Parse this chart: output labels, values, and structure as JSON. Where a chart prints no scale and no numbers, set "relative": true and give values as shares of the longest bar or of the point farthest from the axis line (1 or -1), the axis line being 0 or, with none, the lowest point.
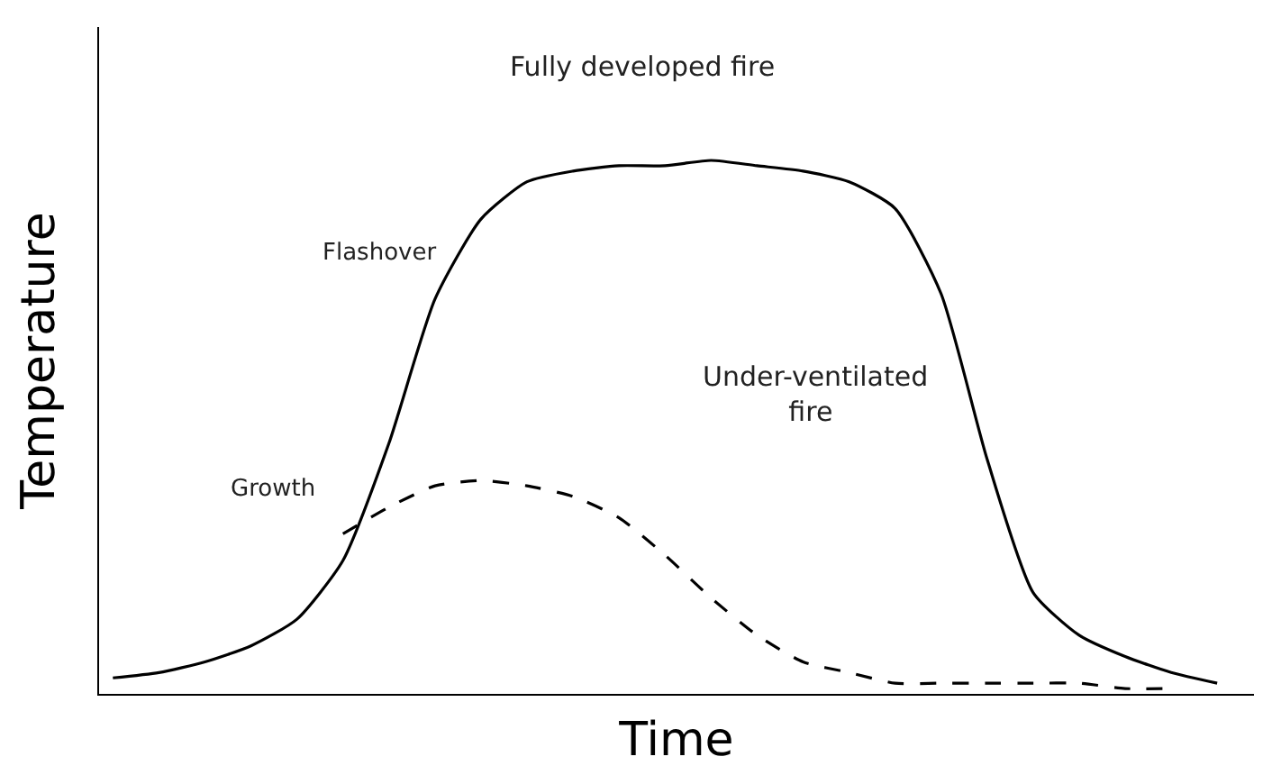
{
  "chart_data": {
    "type": "line",
    "relative": true,
    "xlabel": "Time",
    "ylabel": "Temperature",
    "marker": "none",
    "tick_labels": false,
    "categories": [
      null,
      null,
      null,
      null,
      null,
      null,
      null,
      null,
      null,
      null,
      null,
      null,
      null,
      null,
      null,
      null,
      null,
      null,
      null,
      null,
      null,
      null,
      null,
      null,
      null
    ],
    "series": [
      {
        "color": "#000000",
        "line_style": "solid",
        "values": [
          0.03,
          0.04,
          0.06,
          0.09,
          0.14,
          0.25,
          0.47,
          0.74,
          0.89,
          0.96,
          0.98,
          0.99,
          0.99,
          1.0,
          0.99,
          0.98,
          0.96,
          0.91,
          0.75,
          0.44,
          0.19,
          0.11,
          0.07,
          0.04,
          0.02
        ]
      },
      {
        "color": "#000000",
        "line_style": "dashed",
        "values": [
          null,
          null,
          null,
          null,
          null,
          0.3,
          0.35,
          0.39,
          0.4,
          0.39,
          0.37,
          0.33,
          0.26,
          0.18,
          0.11,
          0.06,
          0.04,
          0.02,
          0.02,
          0.02,
          0.02,
          0.02,
          0.01,
          0.01,
          null
        ]
      }
    ],
    "annotations": [
      "Fully developed fire",
      "Flashover",
      "Under-ventilated fire",
      "Growth"
    ]
  }
}
